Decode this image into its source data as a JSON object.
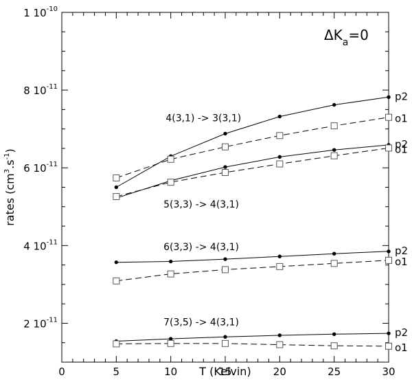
{
  "chart_data": {
    "type": "line",
    "title": "",
    "panel_label": {
      "delta": "ΔK",
      "sub": "a",
      "rest": "=0"
    },
    "xlabel": "T (Kelvin)",
    "ylabel": {
      "prefix": "rates (cm",
      "sup1": "3",
      "mid": ".s",
      "sup2": "-1",
      "suffix": ")"
    },
    "xlim": [
      0,
      30
    ],
    "ylim": [
      1e-11,
      1e-10
    ],
    "x_ticks": [
      {
        "value": 0,
        "label": "0"
      },
      {
        "value": 5,
        "label": "5"
      },
      {
        "value": 10,
        "label": "10"
      },
      {
        "value": 15,
        "label": "15"
      },
      {
        "value": 20,
        "label": "20"
      },
      {
        "value": 25,
        "label": "25"
      },
      {
        "value": 30,
        "label": "30"
      }
    ],
    "y_ticks": [
      {
        "value": 2e-11,
        "mantissa": "2 10",
        "exp": "-11"
      },
      {
        "value": 4e-11,
        "mantissa": "4 10",
        "exp": "-11"
      },
      {
        "value": 6e-11,
        "mantissa": "6 10",
        "exp": "-11"
      },
      {
        "value": 8e-11,
        "mantissa": "8 10",
        "exp": "-11"
      },
      {
        "value": 1e-10,
        "mantissa": "1 10",
        "exp": "-10"
      }
    ],
    "grid": false,
    "x": [
      5,
      10,
      15,
      20,
      25,
      30
    ],
    "series": [
      {
        "transition": 0,
        "name": "p2",
        "style": "solid",
        "marker": "dot",
        "values": [
          5.5e-11,
          6.3e-11,
          6.88e-11,
          7.32e-11,
          7.62e-11,
          7.82e-11
        ]
      },
      {
        "transition": 0,
        "name": "o1",
        "style": "dashed",
        "marker": "square",
        "values": [
          5.74e-11,
          6.22e-11,
          6.54e-11,
          6.83e-11,
          7.08e-11,
          7.3e-11
        ]
      },
      {
        "transition": 1,
        "name": "p2",
        "style": "solid",
        "marker": "dot",
        "values": [
          5.22e-11,
          5.67e-11,
          6.02e-11,
          6.28e-11,
          6.46e-11,
          6.59e-11
        ]
      },
      {
        "transition": 1,
        "name": "o1",
        "style": "dashed",
        "marker": "square",
        "values": [
          5.26e-11,
          5.63e-11,
          5.88e-11,
          6.1e-11,
          6.31e-11,
          6.51e-11
        ]
      },
      {
        "transition": 2,
        "name": "p2",
        "style": "solid",
        "marker": "dot",
        "values": [
          3.57e-11,
          3.59e-11,
          3.65e-11,
          3.72e-11,
          3.79e-11,
          3.85e-11
        ]
      },
      {
        "transition": 2,
        "name": "o1",
        "style": "dashed",
        "marker": "square",
        "values": [
          3.09e-11,
          3.27e-11,
          3.38e-11,
          3.46e-11,
          3.54e-11,
          3.62e-11
        ]
      },
      {
        "transition": 3,
        "name": "p2",
        "style": "solid",
        "marker": "dot",
        "values": [
          1.54e-11,
          1.6e-11,
          1.65e-11,
          1.69e-11,
          1.72e-11,
          1.74e-11
        ]
      },
      {
        "transition": 3,
        "name": "o1",
        "style": "dashed",
        "marker": "square",
        "values": [
          1.47e-11,
          1.48e-11,
          1.48e-11,
          1.45e-11,
          1.42e-11,
          1.41e-11
        ]
      }
    ],
    "transition_labels": [
      {
        "text": "4(3,1) -> 3(3,1)",
        "at_x": 13,
        "at_y": 7.2e-11
      },
      {
        "text": "5(3,3) -> 4(3,1)",
        "at_x": 12.8,
        "at_y": 4.98e-11
      },
      {
        "text": "6(3,3) -> 4(3,1)",
        "at_x": 12.8,
        "at_y": 3.88e-11
      },
      {
        "text": "7(3,5) -> 4(3,1)",
        "at_x": 12.8,
        "at_y": 1.95e-11
      }
    ],
    "colors": {
      "line": "#000000",
      "marker_fill_square": "#ffffff"
    }
  }
}
